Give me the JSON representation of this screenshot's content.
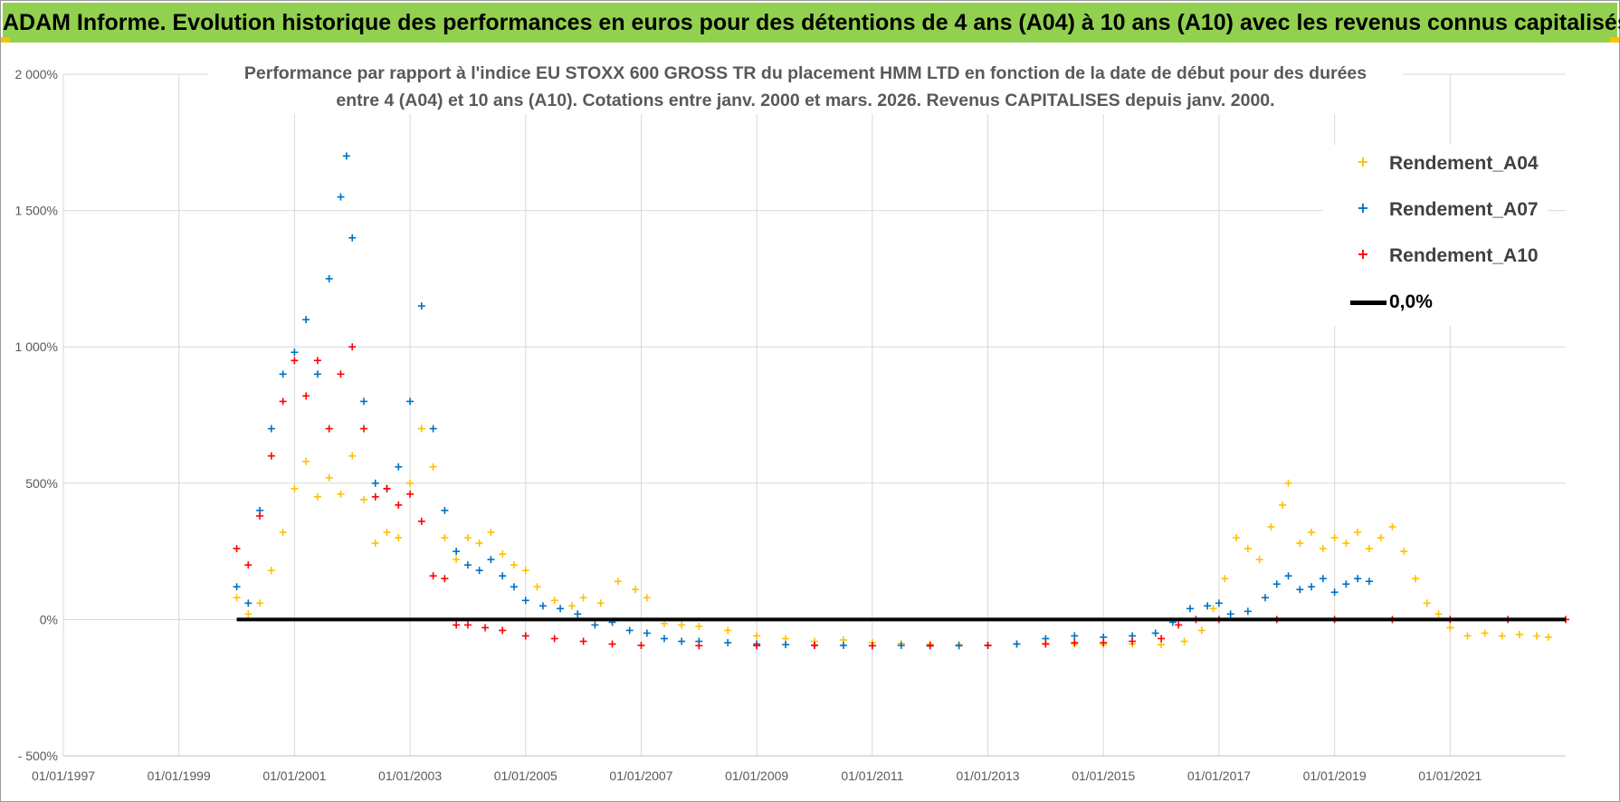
{
  "banner": {
    "title": "ADAM Informe. Evolution historique des performances en euros pour des détentions de 4 ans (A04) à 10 ans (A10) avec les revenus connus capitalisés"
  },
  "chart_data": {
    "type": "scatter",
    "title_lines": [
      "Performance par rapport à l'indice EU STOXX 600 GROSS TR  du placement HMM LTD en fonction de la date de début pour des durées",
      "entre 4 (A04) et 10 ans (A10). Cotations entre janv. 2000 et mars. 2026. Revenus CAPITALISES depuis janv. 2000."
    ],
    "xlabel": "",
    "ylabel": "",
    "x_range_years": [
      1997.0,
      2023.0
    ],
    "ylim": [
      -500,
      2000
    ],
    "y_ticks": [
      {
        "value": 2000,
        "label": "2 000%"
      },
      {
        "value": 1500,
        "label": "1 500%"
      },
      {
        "value": 1000,
        "label": "1 000%"
      },
      {
        "value": 500,
        "label": "500%"
      },
      {
        "value": 0,
        "label": "0%"
      },
      {
        "value": -500,
        "label": "- 500%"
      }
    ],
    "x_ticks": [
      {
        "value": 1997,
        "label": "01/01/1997"
      },
      {
        "value": 1999,
        "label": "01/01/1999"
      },
      {
        "value": 2001,
        "label": "01/01/2001"
      },
      {
        "value": 2003,
        "label": "01/01/2003"
      },
      {
        "value": 2005,
        "label": "01/01/2005"
      },
      {
        "value": 2007,
        "label": "01/01/2007"
      },
      {
        "value": 2009,
        "label": "01/01/2009"
      },
      {
        "value": 2011,
        "label": "01/01/2011"
      },
      {
        "value": 2013,
        "label": "01/01/2013"
      },
      {
        "value": 2015,
        "label": "01/01/2015"
      },
      {
        "value": 2017,
        "label": "01/01/2017"
      },
      {
        "value": 2019,
        "label": "01/01/2019"
      },
      {
        "value": 2021,
        "label": "01/01/2021"
      }
    ],
    "grid": true,
    "legend_position": "top-right",
    "series": [
      {
        "name": "Rendement_A04",
        "color": "#ffc000",
        "marker": "+",
        "points": [
          [
            2000.0,
            80
          ],
          [
            2000.2,
            20
          ],
          [
            2000.4,
            60
          ],
          [
            2000.6,
            180
          ],
          [
            2000.8,
            320
          ],
          [
            2001.0,
            480
          ],
          [
            2001.2,
            580
          ],
          [
            2001.4,
            450
          ],
          [
            2001.6,
            520
          ],
          [
            2001.8,
            460
          ],
          [
            2002.0,
            600
          ],
          [
            2002.2,
            440
          ],
          [
            2002.4,
            280
          ],
          [
            2002.6,
            320
          ],
          [
            2002.8,
            300
          ],
          [
            2003.0,
            500
          ],
          [
            2003.2,
            700
          ],
          [
            2003.4,
            560
          ],
          [
            2003.6,
            300
          ],
          [
            2003.8,
            220
          ],
          [
            2004.0,
            300
          ],
          [
            2004.2,
            280
          ],
          [
            2004.4,
            320
          ],
          [
            2004.6,
            240
          ],
          [
            2004.8,
            200
          ],
          [
            2005.0,
            180
          ],
          [
            2005.2,
            120
          ],
          [
            2005.5,
            70
          ],
          [
            2005.8,
            50
          ],
          [
            2006.0,
            80
          ],
          [
            2006.3,
            60
          ],
          [
            2006.6,
            140
          ],
          [
            2006.9,
            110
          ],
          [
            2007.1,
            80
          ],
          [
            2007.4,
            -15
          ],
          [
            2007.7,
            -20
          ],
          [
            2008.0,
            -25
          ],
          [
            2008.5,
            -40
          ],
          [
            2009.0,
            -60
          ],
          [
            2009.5,
            -70
          ],
          [
            2010.0,
            -80
          ],
          [
            2010.5,
            -75
          ],
          [
            2011.0,
            -85
          ],
          [
            2011.5,
            -88
          ],
          [
            2012.0,
            -90
          ],
          [
            2012.5,
            -92
          ],
          [
            2013.0,
            -95
          ],
          [
            2013.5,
            -90
          ],
          [
            2014.0,
            -88
          ],
          [
            2014.5,
            -90
          ],
          [
            2015.0,
            -92
          ],
          [
            2015.5,
            -90
          ],
          [
            2016.0,
            -92
          ],
          [
            2016.4,
            -80
          ],
          [
            2016.7,
            -40
          ],
          [
            2016.9,
            40
          ],
          [
            2017.1,
            150
          ],
          [
            2017.3,
            300
          ],
          [
            2017.5,
            260
          ],
          [
            2017.7,
            220
          ],
          [
            2017.9,
            340
          ],
          [
            2018.1,
            420
          ],
          [
            2018.2,
            500
          ],
          [
            2018.4,
            280
          ],
          [
            2018.6,
            320
          ],
          [
            2018.8,
            260
          ],
          [
            2019.0,
            300
          ],
          [
            2019.2,
            280
          ],
          [
            2019.4,
            320
          ],
          [
            2019.6,
            260
          ],
          [
            2019.8,
            300
          ],
          [
            2020.0,
            340
          ],
          [
            2020.2,
            250
          ],
          [
            2020.4,
            150
          ],
          [
            2020.6,
            60
          ],
          [
            2020.8,
            20
          ],
          [
            2021.0,
            -30
          ],
          [
            2021.3,
            -60
          ],
          [
            2021.6,
            -50
          ],
          [
            2021.9,
            -60
          ],
          [
            2022.2,
            -55
          ],
          [
            2022.5,
            -60
          ],
          [
            2022.7,
            -65
          ]
        ]
      },
      {
        "name": "Rendement_A07",
        "color": "#0070c0",
        "marker": "+",
        "points": [
          [
            2000.0,
            120
          ],
          [
            2000.2,
            60
          ],
          [
            2000.4,
            400
          ],
          [
            2000.6,
            700
          ],
          [
            2000.8,
            900
          ],
          [
            2001.0,
            980
          ],
          [
            2001.2,
            1100
          ],
          [
            2001.4,
            900
          ],
          [
            2001.6,
            1250
          ],
          [
            2001.8,
            1550
          ],
          [
            2001.9,
            1700
          ],
          [
            2002.0,
            1400
          ],
          [
            2002.2,
            800
          ],
          [
            2002.4,
            500
          ],
          [
            2002.6,
            480
          ],
          [
            2002.8,
            560
          ],
          [
            2003.0,
            800
          ],
          [
            2003.2,
            1150
          ],
          [
            2003.4,
            700
          ],
          [
            2003.6,
            400
          ],
          [
            2003.8,
            250
          ],
          [
            2004.0,
            200
          ],
          [
            2004.2,
            180
          ],
          [
            2004.4,
            220
          ],
          [
            2004.6,
            160
          ],
          [
            2004.8,
            120
          ],
          [
            2005.0,
            70
          ],
          [
            2005.3,
            50
          ],
          [
            2005.6,
            40
          ],
          [
            2005.9,
            20
          ],
          [
            2006.2,
            -20
          ],
          [
            2006.5,
            -10
          ],
          [
            2006.8,
            -40
          ],
          [
            2007.1,
            -50
          ],
          [
            2007.4,
            -70
          ],
          [
            2007.7,
            -80
          ],
          [
            2008.0,
            -80
          ],
          [
            2008.5,
            -85
          ],
          [
            2009.0,
            -90
          ],
          [
            2009.5,
            -92
          ],
          [
            2010.0,
            -95
          ],
          [
            2010.5,
            -95
          ],
          [
            2011.0,
            -96
          ],
          [
            2011.5,
            -95
          ],
          [
            2012.0,
            -97
          ],
          [
            2012.5,
            -96
          ],
          [
            2013.0,
            -95
          ],
          [
            2013.5,
            -90
          ],
          [
            2014.0,
            -70
          ],
          [
            2014.5,
            -60
          ],
          [
            2015.0,
            -65
          ],
          [
            2015.5,
            -60
          ],
          [
            2015.9,
            -50
          ],
          [
            2016.2,
            -10
          ],
          [
            2016.5,
            40
          ],
          [
            2016.8,
            50
          ],
          [
            2017.0,
            60
          ],
          [
            2017.2,
            20
          ],
          [
            2017.5,
            30
          ],
          [
            2017.8,
            80
          ],
          [
            2018.0,
            130
          ],
          [
            2018.2,
            160
          ],
          [
            2018.4,
            110
          ],
          [
            2018.6,
            120
          ],
          [
            2018.8,
            150
          ],
          [
            2019.0,
            100
          ],
          [
            2019.2,
            130
          ],
          [
            2019.4,
            150
          ],
          [
            2019.6,
            140
          ]
        ]
      },
      {
        "name": "Rendement_A10",
        "color": "#ff0000",
        "marker": "+",
        "points": [
          [
            2000.0,
            260
          ],
          [
            2000.2,
            200
          ],
          [
            2000.4,
            380
          ],
          [
            2000.6,
            600
          ],
          [
            2000.8,
            800
          ],
          [
            2001.0,
            950
          ],
          [
            2001.2,
            820
          ],
          [
            2001.4,
            950
          ],
          [
            2001.6,
            700
          ],
          [
            2001.8,
            900
          ],
          [
            2002.0,
            1000
          ],
          [
            2002.2,
            700
          ],
          [
            2002.4,
            450
          ],
          [
            2002.6,
            480
          ],
          [
            2002.8,
            420
          ],
          [
            2003.0,
            460
          ],
          [
            2003.2,
            360
          ],
          [
            2003.4,
            160
          ],
          [
            2003.6,
            150
          ],
          [
            2003.8,
            -20
          ],
          [
            2004.0,
            -20
          ],
          [
            2004.3,
            -30
          ],
          [
            2004.6,
            -40
          ],
          [
            2005.0,
            -60
          ],
          [
            2005.5,
            -70
          ],
          [
            2006.0,
            -80
          ],
          [
            2006.5,
            -90
          ],
          [
            2007.0,
            -95
          ],
          [
            2008.0,
            -96
          ],
          [
            2009.0,
            -96
          ],
          [
            2010.0,
            -95
          ],
          [
            2011.0,
            -96
          ],
          [
            2012.0,
            -95
          ],
          [
            2013.0,
            -95
          ],
          [
            2014.0,
            -90
          ],
          [
            2014.5,
            -85
          ],
          [
            2015.0,
            -85
          ],
          [
            2015.5,
            -80
          ],
          [
            2016.0,
            -70
          ],
          [
            2016.3,
            -20
          ],
          [
            2016.6,
            0
          ],
          [
            2017.0,
            0
          ],
          [
            2018.0,
            0
          ],
          [
            2019.0,
            0
          ],
          [
            2020.0,
            0
          ],
          [
            2021.0,
            0
          ],
          [
            2022.0,
            0
          ],
          [
            2023.0,
            0
          ]
        ]
      },
      {
        "name": "0,0%",
        "color": "#000000",
        "marker": "line",
        "points": [
          [
            2000.0,
            0
          ],
          [
            2023.0,
            0
          ]
        ]
      }
    ]
  }
}
